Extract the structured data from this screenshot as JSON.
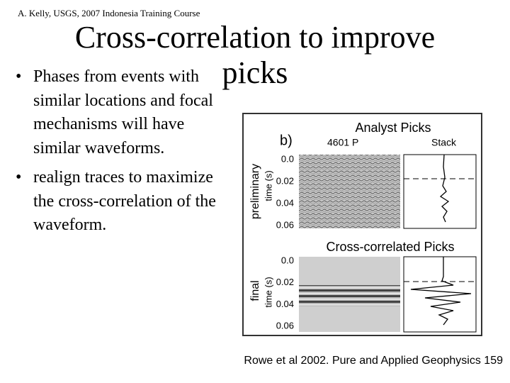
{
  "header": {
    "credit": "A. Kelly, USGS, 2007 Indonesia Training Course",
    "title": "Cross-correlation to improve picks"
  },
  "bullets": [
    "Phases from events with similar locations and focal mechanisms will have similar waveforms.",
    "realign traces to maximize the cross-correlation of the waveform."
  ],
  "figure": {
    "panel_label": "b)",
    "event": "4601 P",
    "stack_label": "Stack",
    "top": {
      "title": "Analyst Picks",
      "row_label": "preliminary",
      "axis_label": "time (s)",
      "ticks": [
        "0.0",
        "0.02",
        "0.04",
        "0.06"
      ]
    },
    "bottom": {
      "title": "Cross-correlated Picks",
      "row_label": "final",
      "axis_label": "time (s)",
      "ticks": [
        "0.0",
        "0.02",
        "0.04",
        "0.06"
      ]
    }
  },
  "caption": "Rowe et al 2002. Pure and Applied Geophysics 159"
}
